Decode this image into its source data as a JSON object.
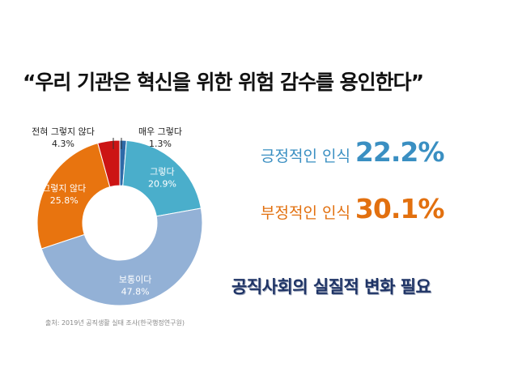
{
  "title": "“우리 기관은 혁신을 위한 위험 감수를 용인한다”",
  "chart_data": {
    "type": "pie",
    "donut": true,
    "start_angle_deg": 0,
    "slices": [
      {
        "label": "매우 그렇다",
        "value": 1.3,
        "display": "1.3%",
        "color": "#2e6aa8",
        "label_pos": "outside"
      },
      {
        "label": "그렇다",
        "value": 20.9,
        "display": "20.9%",
        "color": "#4aaecb",
        "label_pos": "inside"
      },
      {
        "label": "보통이다",
        "value": 47.8,
        "display": "47.8%",
        "color": "#93b1d6",
        "label_pos": "inside"
      },
      {
        "label": "그렇지 않다",
        "value": 25.8,
        "display": "25.8%",
        "color": "#e8740f",
        "label_pos": "inside"
      },
      {
        "label": "전혀 그렇지 않다",
        "value": 4.3,
        "display": "4.3%",
        "color": "#cc1414",
        "label_pos": "outside"
      }
    ]
  },
  "source": "출처: 2019년 공직생활 실태 조사(한국행정연구원)",
  "stats": {
    "positive": {
      "label": "긍정적인 인식",
      "value": "22.2%",
      "color": "#3a8fc2"
    },
    "negative": {
      "label": "부정적인 인식",
      "value": "30.1%",
      "color": "#e2700f"
    }
  },
  "conclusion": "공직사회의 실질적 변화 필요"
}
